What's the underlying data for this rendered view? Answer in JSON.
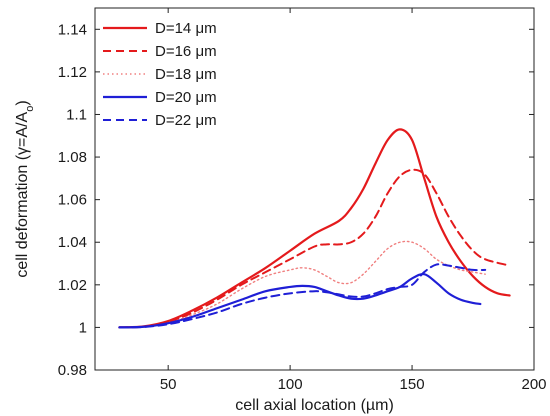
{
  "chart_data": {
    "type": "line",
    "xlabel": "cell axial location (µm)",
    "ylabel_main": "cell deformation (γ=A/A",
    "ylabel_sub": "o",
    "ylabel_close": ")",
    "xlim": [
      20,
      200
    ],
    "ylim": [
      0.98,
      1.15
    ],
    "xticks": [
      50,
      100,
      150,
      200
    ],
    "xtick_labels": [
      "50",
      "100",
      "150",
      "200"
    ],
    "yticks": [
      0.98,
      1,
      1.02,
      1.04,
      1.06,
      1.08,
      1.1,
      1.12,
      1.14
    ],
    "ytick_labels": [
      "0.98",
      "1",
      "1.02",
      "1.04",
      "1.06",
      "1.08",
      "1.1",
      "1.12",
      "1.14"
    ],
    "grid": false,
    "legend_position": "top-left",
    "series": [
      {
        "name": "D=14 μm",
        "color": "#e41a1c",
        "dash": "solid",
        "x": [
          30,
          40,
          50,
          60,
          70,
          80,
          90,
          100,
          110,
          120,
          125,
          130,
          135,
          140,
          145,
          150,
          155,
          160,
          165,
          170,
          175,
          180,
          185,
          190
        ],
        "y": [
          1.0,
          1.0005,
          1.003,
          1.008,
          1.014,
          1.021,
          1.028,
          1.036,
          1.044,
          1.05,
          1.056,
          1.065,
          1.077,
          1.088,
          1.093,
          1.088,
          1.07,
          1.052,
          1.04,
          1.031,
          1.024,
          1.019,
          1.016,
          1.015
        ]
      },
      {
        "name": "D=16 μm",
        "color": "#e41a1c",
        "dash": "dashed",
        "x": [
          30,
          40,
          50,
          60,
          70,
          80,
          90,
          100,
          110,
          115,
          120,
          125,
          130,
          135,
          140,
          145,
          150,
          155,
          160,
          165,
          170,
          175,
          180,
          190
        ],
        "y": [
          1.0,
          1.0004,
          1.0025,
          1.007,
          1.013,
          1.02,
          1.026,
          1.032,
          1.038,
          1.039,
          1.039,
          1.04,
          1.044,
          1.052,
          1.063,
          1.071,
          1.074,
          1.072,
          1.063,
          1.052,
          1.043,
          1.036,
          1.032,
          1.029
        ]
      },
      {
        "name": "D=18 μm",
        "color": "#f08080",
        "dash": "dotted",
        "x": [
          30,
          40,
          50,
          60,
          70,
          80,
          90,
          100,
          105,
          110,
          115,
          120,
          125,
          130,
          135,
          140,
          145,
          150,
          155,
          160,
          165,
          170,
          175,
          180
        ],
        "y": [
          1.0,
          1.0003,
          1.002,
          1.006,
          1.011,
          1.018,
          1.024,
          1.027,
          1.028,
          1.027,
          1.024,
          1.021,
          1.021,
          1.025,
          1.031,
          1.037,
          1.04,
          1.04,
          1.037,
          1.032,
          1.029,
          1.027,
          1.026,
          1.025
        ]
      },
      {
        "name": "D=20 μm",
        "color": "#1f1fd6",
        "dash": "solid",
        "x": [
          30,
          40,
          50,
          60,
          70,
          80,
          90,
          100,
          105,
          110,
          115,
          120,
          125,
          130,
          135,
          140,
          145,
          150,
          155,
          160,
          165,
          170,
          175,
          178
        ],
        "y": [
          1.0,
          1.0003,
          1.002,
          1.005,
          1.009,
          1.013,
          1.017,
          1.019,
          1.0195,
          1.019,
          1.017,
          1.015,
          1.0135,
          1.0135,
          1.015,
          1.017,
          1.019,
          1.023,
          1.025,
          1.021,
          1.016,
          1.013,
          1.0115,
          1.011
        ]
      },
      {
        "name": "D=22 μm",
        "color": "#1f1fd6",
        "dash": "dashed",
        "x": [
          30,
          40,
          50,
          60,
          70,
          80,
          90,
          100,
          110,
          115,
          120,
          125,
          130,
          135,
          140,
          145,
          150,
          155,
          160,
          165,
          170,
          175,
          180
        ],
        "y": [
          1.0,
          1.0002,
          1.0015,
          1.004,
          1.007,
          1.011,
          1.014,
          1.016,
          1.017,
          1.0165,
          1.0155,
          1.0145,
          1.0145,
          1.016,
          1.018,
          1.019,
          1.02,
          1.026,
          1.0295,
          1.029,
          1.028,
          1.027,
          1.027
        ]
      }
    ]
  }
}
